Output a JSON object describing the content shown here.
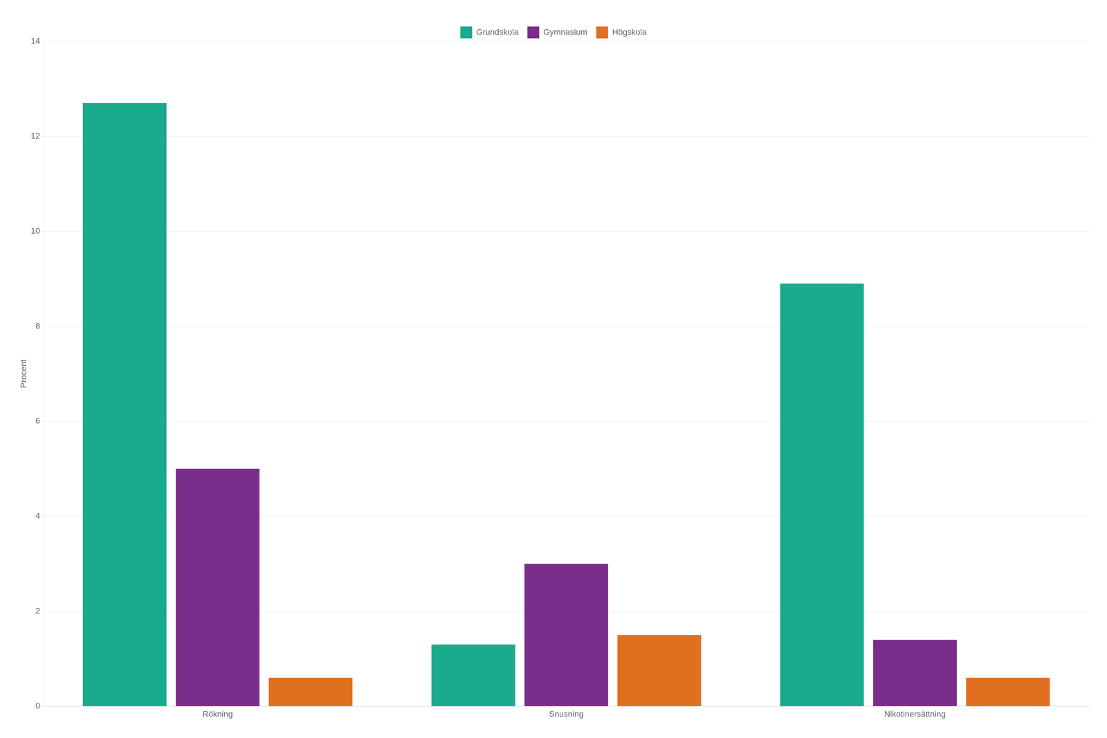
{
  "chart_data": {
    "type": "bar",
    "ylabel": "Procent",
    "categories": [
      "Rökning",
      "Snusning",
      "Nikotinersättning"
    ],
    "series": [
      {
        "name": "Grundskola",
        "color": "#1aaa8c",
        "values": [
          12.7,
          1.3,
          8.9
        ]
      },
      {
        "name": "Gymnasium",
        "color": "#7b2d8b",
        "values": [
          5.0,
          3.0,
          1.4
        ]
      },
      {
        "name": "Högskola",
        "color": "#e07020",
        "values": [
          0.6,
          1.5,
          0.6
        ]
      }
    ],
    "ylim": [
      0,
      14
    ],
    "yticks": [
      0,
      2,
      4,
      6,
      8,
      10,
      12,
      14
    ],
    "grid": true,
    "legend": "top"
  }
}
